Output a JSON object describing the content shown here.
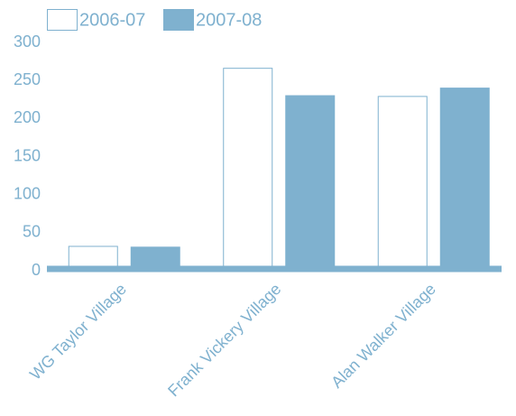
{
  "chart_data": {
    "type": "bar",
    "categories": [
      "WG Taylor Village",
      "Frank Vickery Village",
      "Alan Walker Village"
    ],
    "series": [
      {
        "name": "2006-07",
        "color": "#ffffff",
        "values": [
          32,
          266,
          229
        ]
      },
      {
        "name": "2007-08",
        "color": "#7fb1cf",
        "values": [
          31,
          230,
          240
        ]
      }
    ],
    "ylim": [
      0,
      300
    ],
    "yticks": [
      0,
      50,
      100,
      150,
      200,
      250,
      300
    ],
    "grid": false,
    "legend": "top-left"
  }
}
